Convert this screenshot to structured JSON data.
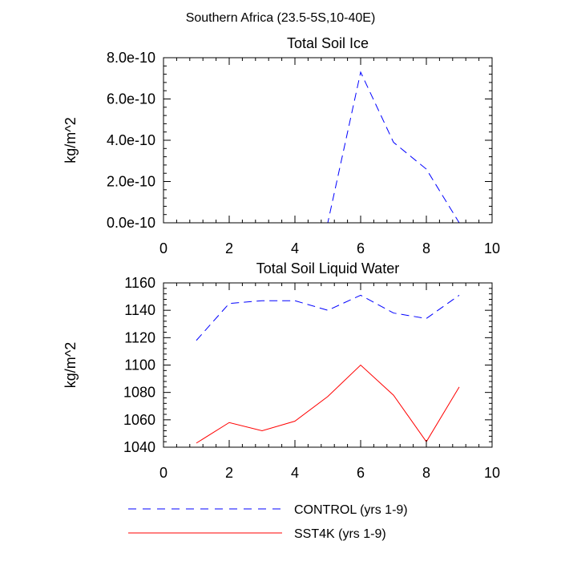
{
  "figure": {
    "main_title": "Southern Africa (23.5-5S,10-40E)"
  },
  "legend": {
    "entries": [
      {
        "label": "CONTROL (yrs 1-9)",
        "color": "#0000ff",
        "dash": "dashed"
      },
      {
        "label": "SST4K (yrs 1-9)",
        "color": "#ff0000",
        "dash": "solid"
      }
    ]
  },
  "chart_data": [
    {
      "type": "line",
      "title": "Total Soil Ice",
      "xlabel": "",
      "ylabel": "kg/m^2",
      "xlim": [
        0,
        10
      ],
      "ylim": [
        0,
        8e-10
      ],
      "xticks": [
        0,
        2,
        4,
        6,
        8,
        10
      ],
      "xtick_labels": [
        "0",
        "2",
        "4",
        "6",
        "8",
        "10"
      ],
      "yticks": [
        0,
        2e-10,
        4e-10,
        6e-10,
        8e-10
      ],
      "ytick_labels": [
        "0.0e-10",
        "2.0e-10",
        "4.0e-10",
        "6.0e-10",
        "8.0e-10"
      ],
      "grid": false,
      "x": [
        1,
        2,
        3,
        4,
        5,
        6,
        7,
        8,
        9
      ],
      "series": [
        {
          "name": "CONTROL (yrs 1-9)",
          "color": "#0000ff",
          "dash": "dashed",
          "values": [
            0,
            0,
            0,
            0,
            0,
            7.3e-10,
            3.9e-10,
            2.6e-10,
            0
          ]
        },
        {
          "name": "SST4K (yrs 1-9)",
          "color": "#ff0000",
          "dash": "solid",
          "values": [
            0,
            0,
            0,
            0,
            0,
            0,
            0,
            0,
            0
          ]
        }
      ]
    },
    {
      "type": "line",
      "title": "Total Soil Liquid Water",
      "xlabel": "",
      "ylabel": "kg/m^2",
      "xlim": [
        0,
        10
      ],
      "ylim": [
        1040,
        1160
      ],
      "xticks": [
        0,
        2,
        4,
        6,
        8,
        10
      ],
      "xtick_labels": [
        "0",
        "2",
        "4",
        "6",
        "8",
        "10"
      ],
      "yticks": [
        1040,
        1060,
        1080,
        1100,
        1120,
        1140,
        1160
      ],
      "ytick_labels": [
        "1040",
        "1060",
        "1080",
        "1100",
        "1120",
        "1140",
        "1160"
      ],
      "grid": false,
      "x": [
        1,
        2,
        3,
        4,
        5,
        6,
        7,
        8,
        9
      ],
      "series": [
        {
          "name": "CONTROL (yrs 1-9)",
          "color": "#0000ff",
          "dash": "dashed",
          "values": [
            1118,
            1145,
            1147,
            1147,
            1140,
            1151,
            1138,
            1134,
            1151
          ]
        },
        {
          "name": "SST4K (yrs 1-9)",
          "color": "#ff0000",
          "dash": "solid",
          "values": [
            1043,
            1058,
            1052,
            1059,
            1077,
            1100,
            1078,
            1044,
            1084
          ]
        }
      ]
    }
  ]
}
